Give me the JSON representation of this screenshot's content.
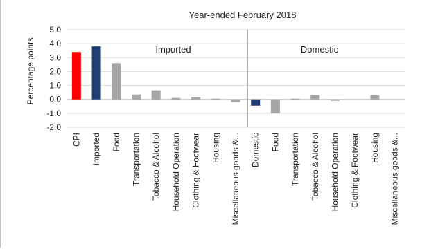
{
  "chart_data": {
    "type": "bar",
    "title": "Year-ended February 2018",
    "ylabel": "Percentage points",
    "xlabel": "",
    "ylim": [
      -2.0,
      5.0
    ],
    "yticks": [
      "5.0",
      "4.0",
      "3.0",
      "2.0",
      "1.0",
      "0.0",
      "-1.0",
      "-2.0"
    ],
    "grid": true,
    "groups": [
      {
        "label": "Imported"
      },
      {
        "label": "Domestic"
      }
    ],
    "categories": [
      "CPI",
      "Imported",
      "Food",
      "Transportation",
      "Tobacco & Alcohol",
      "Household Operation",
      "Clothing & Footwear",
      "Housing",
      "Miscellaneous goods &...",
      "Domestic",
      "Food",
      "Transportation",
      "Tobacco & Alcohol",
      "Household Operation",
      "Clothing & Footwear",
      "Housing",
      "Miscellaneous goods &..."
    ],
    "values": [
      3.4,
      3.8,
      2.6,
      0.35,
      0.65,
      0.1,
      0.15,
      0.05,
      -0.2,
      -0.45,
      -1.0,
      0.05,
      0.3,
      -0.1,
      0.0,
      0.3,
      0.0
    ],
    "colors": {
      "cpi": "#ff0000",
      "aggregate": "#1f3f73",
      "component": "#a6a6a6"
    },
    "bar_color_keys": [
      "cpi",
      "aggregate",
      "component",
      "component",
      "component",
      "component",
      "component",
      "component",
      "component",
      "aggregate",
      "component",
      "component",
      "component",
      "component",
      "component",
      "component",
      "component"
    ]
  }
}
